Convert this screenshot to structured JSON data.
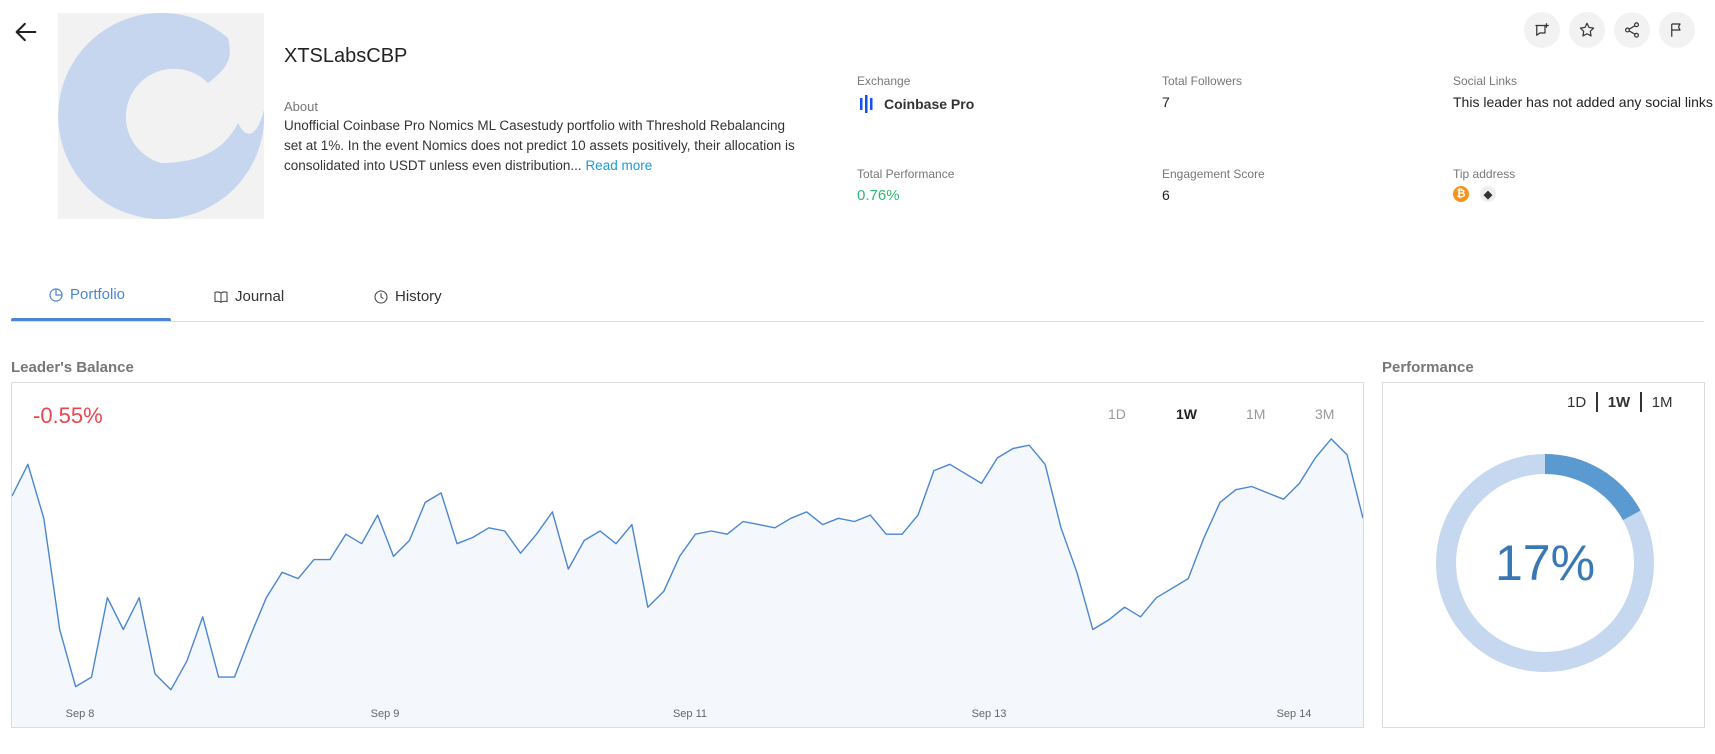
{
  "header": {
    "leader_name": "XTSLabsCBP",
    "about_label": "About",
    "about_text": "Unofficial Coinbase Pro Nomics ML Casestudy portfolio with Threshold Rebalancing set at 1%. In the event Nomics does not predict 10 assets positively, their allocation is consolidated into USDT unless even distribution...",
    "read_more": "Read more"
  },
  "stats": {
    "exchange_label": "Exchange",
    "exchange_value": "Coinbase Pro",
    "followers_label": "Total Followers",
    "followers_value": "7",
    "social_label": "Social Links",
    "social_value": "This leader has not added any social links",
    "performance_label": "Total Performance",
    "performance_value": "0.76%",
    "engagement_label": "Engagement Score",
    "engagement_value": "6",
    "tip_label": "Tip address",
    "tip_coins": [
      "bitcoin-icon",
      "ethereum-icon"
    ]
  },
  "actions": [
    "add-to-list-icon",
    "star-icon",
    "share-icon",
    "flag-icon"
  ],
  "tabs": [
    {
      "label": "Portfolio",
      "icon": "pie-chart-icon",
      "active": true
    },
    {
      "label": "Journal",
      "icon": "book-icon",
      "active": false
    },
    {
      "label": "History",
      "icon": "clock-icon",
      "active": false
    }
  ],
  "balance": {
    "title": "Leader's Balance",
    "change": "-0.55%",
    "change_color": "#e9474f",
    "ranges": [
      "1D",
      "1W",
      "1M",
      "3M"
    ],
    "selected_range": "1W"
  },
  "performance": {
    "title": "Performance",
    "ranges": [
      "1D",
      "1W",
      "1M"
    ],
    "selected_range": "1W",
    "value": "17%",
    "fraction": 0.17,
    "ring_color": "#c5d8ef",
    "fill_color": "#5b9ad0"
  },
  "chart_data": {
    "type": "area",
    "x_ticks": [
      "Sep 8",
      "Sep 9",
      "Sep 11",
      "Sep 13",
      "Sep 14"
    ],
    "y": [
      0.62,
      0.72,
      0.55,
      0.2,
      0.02,
      0.05,
      0.3,
      0.2,
      0.3,
      0.06,
      0.01,
      0.1,
      0.24,
      0.05,
      0.05,
      0.18,
      0.3,
      0.38,
      0.36,
      0.42,
      0.42,
      0.5,
      0.47,
      0.56,
      0.43,
      0.48,
      0.6,
      0.63,
      0.47,
      0.49,
      0.52,
      0.51,
      0.44,
      0.5,
      0.57,
      0.39,
      0.48,
      0.51,
      0.47,
      0.53,
      0.27,
      0.32,
      0.43,
      0.5,
      0.51,
      0.5,
      0.54,
      0.53,
      0.52,
      0.55,
      0.57,
      0.53,
      0.55,
      0.54,
      0.56,
      0.5,
      0.5,
      0.56,
      0.7,
      0.72,
      0.69,
      0.66,
      0.74,
      0.77,
      0.78,
      0.72,
      0.52,
      0.38,
      0.2,
      0.23,
      0.27,
      0.24,
      0.3,
      0.33,
      0.36,
      0.49,
      0.6,
      0.64,
      0.65,
      0.63,
      0.61,
      0.66,
      0.74,
      0.8,
      0.75,
      0.55
    ],
    "ylim": [
      0,
      0.85
    ]
  }
}
